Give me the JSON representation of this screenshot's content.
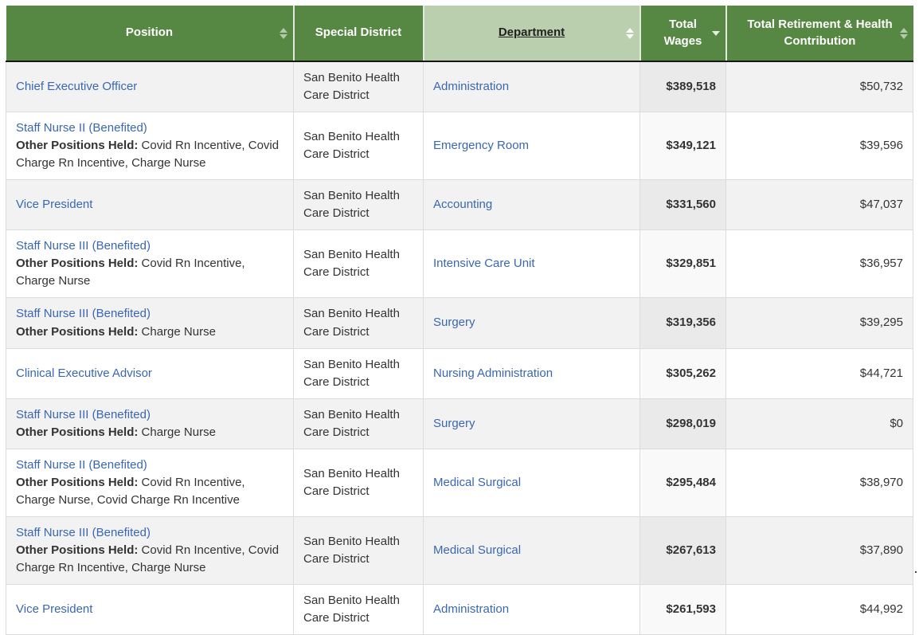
{
  "table": {
    "columns": [
      {
        "label": "Position",
        "sort": "both",
        "state": "normal"
      },
      {
        "label": "Special District",
        "sort": "none",
        "state": "normal"
      },
      {
        "label": "Department",
        "sort": "both",
        "state": "hover"
      },
      {
        "label": "Total Wages",
        "sort": "desc",
        "state": "normal"
      },
      {
        "label": "Total Retirement & Health Contribution",
        "sort": "both",
        "state": "normal"
      }
    ],
    "other_positions_label": "Other Positions Held:",
    "rows": [
      {
        "position": "Chief Executive Officer",
        "other_positions": "",
        "district": "San Benito Health Care District",
        "department": "Administration",
        "total_wages": "$389,518",
        "total_retirement": "$50,732"
      },
      {
        "position": "Staff Nurse II (Benefited)",
        "other_positions": "Covid Rn Incentive, Covid Charge Rn Incentive, Charge Nurse",
        "district": "San Benito Health Care District",
        "department": "Emergency Room",
        "total_wages": "$349,121",
        "total_retirement": "$39,596"
      },
      {
        "position": "Vice President",
        "other_positions": "",
        "district": "San Benito Health Care District",
        "department": "Accounting",
        "total_wages": "$331,560",
        "total_retirement": "$47,037"
      },
      {
        "position": "Staff Nurse III (Benefited)",
        "other_positions": "Covid Rn Incentive, Charge Nurse",
        "district": "San Benito Health Care District",
        "department": "Intensive Care Unit",
        "total_wages": "$329,851",
        "total_retirement": "$36,957"
      },
      {
        "position": "Staff Nurse III (Benefited)",
        "other_positions": "Charge Nurse",
        "district": "San Benito Health Care District",
        "department": "Surgery",
        "total_wages": "$319,356",
        "total_retirement": "$39,295"
      },
      {
        "position": "Clinical Executive Advisor",
        "other_positions": "",
        "district": "San Benito Health Care District",
        "department": "Nursing Administration",
        "total_wages": "$305,262",
        "total_retirement": "$44,721"
      },
      {
        "position": "Staff Nurse III (Benefited)",
        "other_positions": "Charge Nurse",
        "district": "San Benito Health Care District",
        "department": "Surgery",
        "total_wages": "$298,019",
        "total_retirement": "$0"
      },
      {
        "position": "Staff Nurse II (Benefited)",
        "other_positions": "Covid Rn Incentive, Charge Nurse, Covid Charge Rn Incentive",
        "district": "San Benito Health Care District",
        "department": "Medical Surgical",
        "total_wages": "$295,484",
        "total_retirement": "$38,970"
      },
      {
        "position": "Staff Nurse III (Benefited)",
        "other_positions": "Covid Rn Incentive, Covid Charge Rn Incentive, Charge Nurse",
        "district": "San Benito Health Care District",
        "department": "Medical Surgical",
        "total_wages": "$267,613",
        "total_retirement": "$37,890"
      },
      {
        "position": "Vice President",
        "other_positions": "",
        "district": "San Benito Health Care District",
        "department": "Administration",
        "total_wages": "$261,593",
        "total_retirement": "$44,992"
      }
    ],
    "colors": {
      "header_green": "#568843",
      "header_hover_green": "#b9cfad",
      "link_blue": "#3a67b1",
      "stripe_gray": "#f2f2f2",
      "sorted_column_gray": "#eaeaea"
    },
    "artifact_dot": "."
  }
}
